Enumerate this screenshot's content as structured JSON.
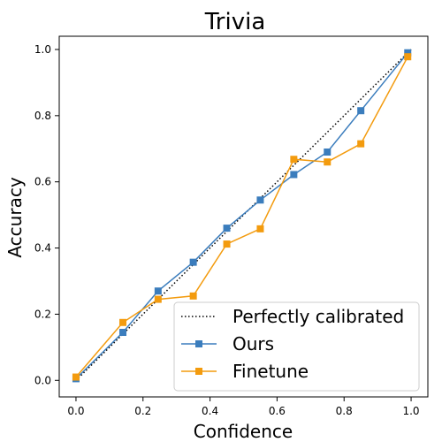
{
  "chart_data": {
    "type": "line",
    "title": "Trivia",
    "xlabel": "Confidence",
    "ylabel": "Accuracy",
    "xlim": [
      -0.05,
      1.05
    ],
    "ylim": [
      -0.05,
      1.04
    ],
    "xticks": [
      "0.0",
      "0.2",
      "0.4",
      "0.6",
      "0.8",
      "1.0"
    ],
    "yticks": [
      "0.0",
      "0.2",
      "0.4",
      "0.6",
      "0.8",
      "1.0"
    ],
    "grid": false,
    "legend_position": "bottom-right",
    "reference_line": {
      "name": "Perfectly calibrated",
      "style": "dotted",
      "color": "#000000",
      "x": [
        0,
        1
      ],
      "y": [
        0,
        1
      ]
    },
    "series": [
      {
        "name": "Ours",
        "color": "#3b7dbd",
        "marker": "square",
        "x": [
          0.0,
          0.14,
          0.245,
          0.35,
          0.45,
          0.55,
          0.65,
          0.75,
          0.85,
          0.99
        ],
        "y": [
          0.005,
          0.145,
          0.27,
          0.357,
          0.46,
          0.545,
          0.622,
          0.69,
          0.815,
          0.99
        ]
      },
      {
        "name": "Finetune",
        "color": "#f39b0e",
        "marker": "square",
        "x": [
          0.0,
          0.14,
          0.245,
          0.35,
          0.45,
          0.55,
          0.65,
          0.75,
          0.85,
          0.99
        ],
        "y": [
          0.01,
          0.175,
          0.245,
          0.255,
          0.412,
          0.458,
          0.668,
          0.66,
          0.715,
          0.978
        ]
      }
    ]
  }
}
